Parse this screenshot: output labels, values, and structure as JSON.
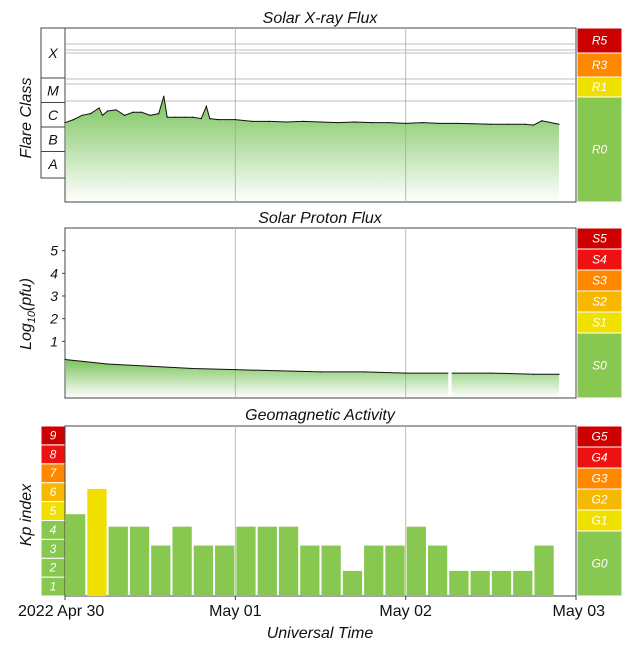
{
  "chart_data": [
    {
      "type": "area",
      "title": "Solar X-ray Flux",
      "ylabel": "Flare Class",
      "y_scale": "log",
      "class_ticks": [
        "X",
        "M",
        "C",
        "B",
        "A"
      ],
      "scale_bar": [
        {
          "label": "R5",
          "color": "#cc0000"
        },
        {
          "label": "R3",
          "color": "#ff8800"
        },
        {
          "label": "R1",
          "color": "#f0e000"
        },
        {
          "label": "R0",
          "color": "#88c850"
        }
      ],
      "x_range_days": [
        0,
        3
      ],
      "series": [
        {
          "x_days": [
            0,
            0.05,
            0.1,
            0.15,
            0.2,
            0.22,
            0.25,
            0.3,
            0.35,
            0.4,
            0.45,
            0.5,
            0.55,
            0.58,
            0.6,
            0.65,
            0.7,
            0.75,
            0.8,
            0.83,
            0.85,
            0.9,
            0.95,
            1.0,
            1.1,
            1.2,
            1.3,
            1.4,
            1.5,
            1.6,
            1.7,
            1.8,
            1.9,
            2.0,
            2.1,
            2.2,
            2.3,
            2.4,
            2.5,
            2.6,
            2.7,
            2.75,
            2.8,
            2.9
          ],
          "values": [
            1.5e-06,
            2e-06,
            3e-06,
            3.5e-06,
            6e-06,
            3e-06,
            4.5e-06,
            5e-06,
            3e-06,
            4e-06,
            4e-06,
            3e-06,
            3.5e-06,
            1.8e-05,
            2.5e-06,
            2.5e-06,
            2.5e-06,
            2.5e-06,
            2.2e-06,
            7e-06,
            2.2e-06,
            2e-06,
            2e-06,
            2e-06,
            1.7e-06,
            1.7e-06,
            1.6e-06,
            1.7e-06,
            1.6e-06,
            1.5e-06,
            1.6e-06,
            1.5e-06,
            1.5e-06,
            1.4e-06,
            1.5e-06,
            1.4e-06,
            1.4e-06,
            1.35e-06,
            1.3e-06,
            1.3e-06,
            1.3e-06,
            1.2e-06,
            1.8e-06,
            1.3e-06
          ],
          "color": "#79c35a"
        }
      ]
    },
    {
      "type": "area",
      "title": "Solar Proton Flux",
      "ylabel": "Log10(pfu)",
      "ylabel_main": "Log",
      "ylabel_sub": "10",
      "ylabel_rest": "(pfu)",
      "ylim": [
        -1.5,
        6
      ],
      "yticks": [
        "1",
        "2",
        "3",
        "4",
        "5"
      ],
      "scale_bar": [
        {
          "label": "S5",
          "color": "#cc0000"
        },
        {
          "label": "S4",
          "color": "#ee1111"
        },
        {
          "label": "S3",
          "color": "#ff8800"
        },
        {
          "label": "S2",
          "color": "#f6b800"
        },
        {
          "label": "S1",
          "color": "#f0e000"
        },
        {
          "label": "S0",
          "color": "#88c850"
        }
      ],
      "x_range_days": [
        0,
        3
      ],
      "gaps_days": [
        [
          2.25,
          2.27
        ]
      ],
      "series": [
        {
          "x_days": [
            0,
            0.25,
            0.5,
            0.75,
            1.0,
            1.25,
            1.5,
            1.75,
            2.0,
            2.25,
            2.5,
            2.75,
            2.9
          ],
          "values": [
            0.2,
            0.0,
            -0.1,
            -0.2,
            -0.25,
            -0.3,
            -0.35,
            -0.35,
            -0.4,
            -0.4,
            -0.4,
            -0.45,
            -0.45
          ],
          "color": "#79c35a"
        }
      ]
    },
    {
      "type": "bar",
      "title": "Geomagnetic Activity",
      "ylabel": "Kp index",
      "ylim": [
        0,
        9
      ],
      "kp_scale": [
        {
          "label": "1",
          "color": "#88c850"
        },
        {
          "label": "2",
          "color": "#88c850"
        },
        {
          "label": "3",
          "color": "#88c850"
        },
        {
          "label": "4",
          "color": "#88c850"
        },
        {
          "label": "5",
          "color": "#f0e000"
        },
        {
          "label": "6",
          "color": "#f6b800"
        },
        {
          "label": "7",
          "color": "#ff8800"
        },
        {
          "label": "8",
          "color": "#ee1111"
        },
        {
          "label": "9",
          "color": "#cc0000"
        }
      ],
      "scale_bar": [
        {
          "label": "G5",
          "color": "#cc0000"
        },
        {
          "label": "G4",
          "color": "#ee1111"
        },
        {
          "label": "G3",
          "color": "#ff8800"
        },
        {
          "label": "G2",
          "color": "#f6b800"
        },
        {
          "label": "G1",
          "color": "#f0e000"
        },
        {
          "label": "G0",
          "color": "#88c850"
        }
      ],
      "bar_interval_hours": 3,
      "values": [
        4.33,
        5.67,
        3.67,
        3.67,
        2.67,
        3.67,
        2.67,
        2.67,
        3.67,
        3.67,
        3.67,
        2.67,
        2.67,
        1.33,
        2.67,
        2.67,
        3.67,
        2.67,
        1.33,
        1.33,
        1.33,
        1.33,
        2.67
      ],
      "bar_colors": {
        "default": "#88c850",
        "kp5": "#f0e000"
      }
    }
  ],
  "xaxis": {
    "label": "Universal Time",
    "ticks": [
      "2022 Apr 30",
      "May 01",
      "May 02",
      "May 03"
    ]
  }
}
